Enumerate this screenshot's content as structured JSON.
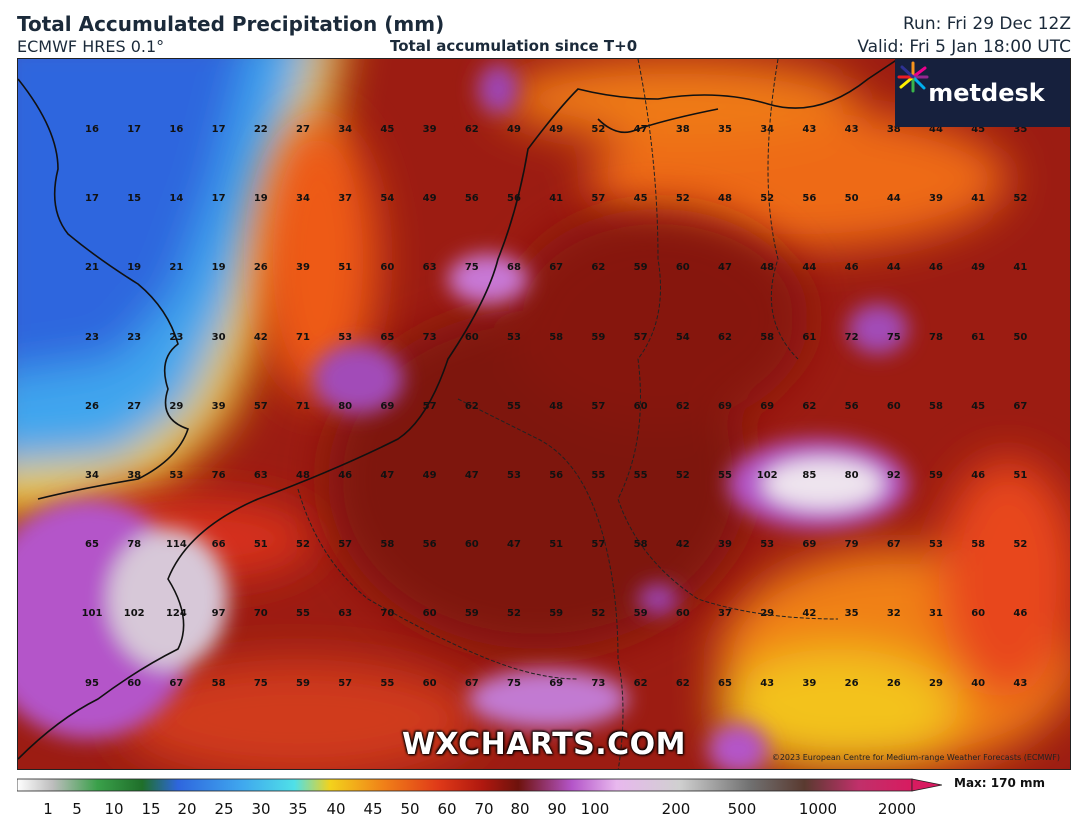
{
  "header": {
    "title": "Total Accumulated Precipitation (mm)",
    "model": "ECMWF HRES 0.1°",
    "subtitle": "Total accumulation since T+0",
    "run": "Run: Fri 29 Dec 12Z",
    "valid": "Valid: Fri 5 Jan 18:00 UTC"
  },
  "branding": {
    "logo_text": "metdesk",
    "logo_icon": "starburst-icon",
    "watermark": "WXCHARTS.COM",
    "copyright": "©2023 European Centre for Medium-range Weather Forecasts (ECMWF)"
  },
  "colors": {
    "sea_blue": "#2f6fe0",
    "light_blue": "#5aa8f0",
    "heavy_red": "#8b1a12",
    "mid_red": "#c9241b",
    "orange": "#f06a14",
    "yellow": "#f3d21c",
    "purple": "#b455c9",
    "white_extreme": "#f1eef1"
  },
  "legend": {
    "max_label": "Max: 170 mm",
    "ticks": [
      "1",
      "5",
      "10",
      "15",
      "20",
      "25",
      "30",
      "35",
      "40",
      "45",
      "50",
      "60",
      "70",
      "80",
      "90",
      "100",
      "200",
      "500",
      "1000",
      "2000"
    ],
    "unit": "mm"
  },
  "grid_values": [
    [
      "16",
      "17",
      "16",
      "17",
      "22",
      "27",
      "34",
      "45",
      "39",
      "62",
      "49",
      "49",
      "52",
      "47",
      "38",
      "35",
      "34",
      "43",
      "43",
      "38",
      "44",
      "45",
      "35"
    ],
    [
      "17",
      "15",
      "14",
      "17",
      "19",
      "34",
      "37",
      "54",
      "49",
      "56",
      "56",
      "41",
      "57",
      "45",
      "52",
      "48",
      "52",
      "56",
      "50",
      "44",
      "39",
      "41",
      "52"
    ],
    [
      "21",
      "19",
      "21",
      "19",
      "26",
      "39",
      "51",
      "60",
      "63",
      "75",
      "68",
      "67",
      "62",
      "59",
      "60",
      "47",
      "48",
      "44",
      "46",
      "44",
      "46",
      "49",
      "41"
    ],
    [
      "23",
      "23",
      "23",
      "30",
      "42",
      "71",
      "53",
      "65",
      "73",
      "60",
      "53",
      "58",
      "59",
      "57",
      "54",
      "62",
      "58",
      "61",
      "72",
      "75",
      "78",
      "61",
      "50"
    ],
    [
      "26",
      "27",
      "29",
      "39",
      "57",
      "71",
      "80",
      "69",
      "57",
      "62",
      "55",
      "48",
      "57",
      "60",
      "62",
      "69",
      "69",
      "62",
      "56",
      "60",
      "58",
      "45",
      "67"
    ],
    [
      "34",
      "38",
      "53",
      "76",
      "63",
      "48",
      "46",
      "47",
      "49",
      "47",
      "53",
      "56",
      "55",
      "55",
      "52",
      "55",
      "102",
      "85",
      "80",
      "92",
      "59",
      "46",
      "51"
    ],
    [
      "65",
      "78",
      "114",
      "66",
      "51",
      "52",
      "57",
      "58",
      "56",
      "60",
      "47",
      "51",
      "57",
      "58",
      "42",
      "39",
      "53",
      "69",
      "79",
      "67",
      "53",
      "58",
      "52"
    ],
    [
      "101",
      "102",
      "124",
      "97",
      "70",
      "55",
      "63",
      "70",
      "60",
      "59",
      "52",
      "59",
      "52",
      "59",
      "60",
      "37",
      "29",
      "42",
      "35",
      "32",
      "31",
      "60",
      "46"
    ],
    [
      "95",
      "60",
      "67",
      "58",
      "75",
      "59",
      "57",
      "55",
      "60",
      "67",
      "75",
      "69",
      "73",
      "62",
      "62",
      "65",
      "43",
      "39",
      "26",
      "26",
      "29",
      "40",
      "43"
    ]
  ]
}
